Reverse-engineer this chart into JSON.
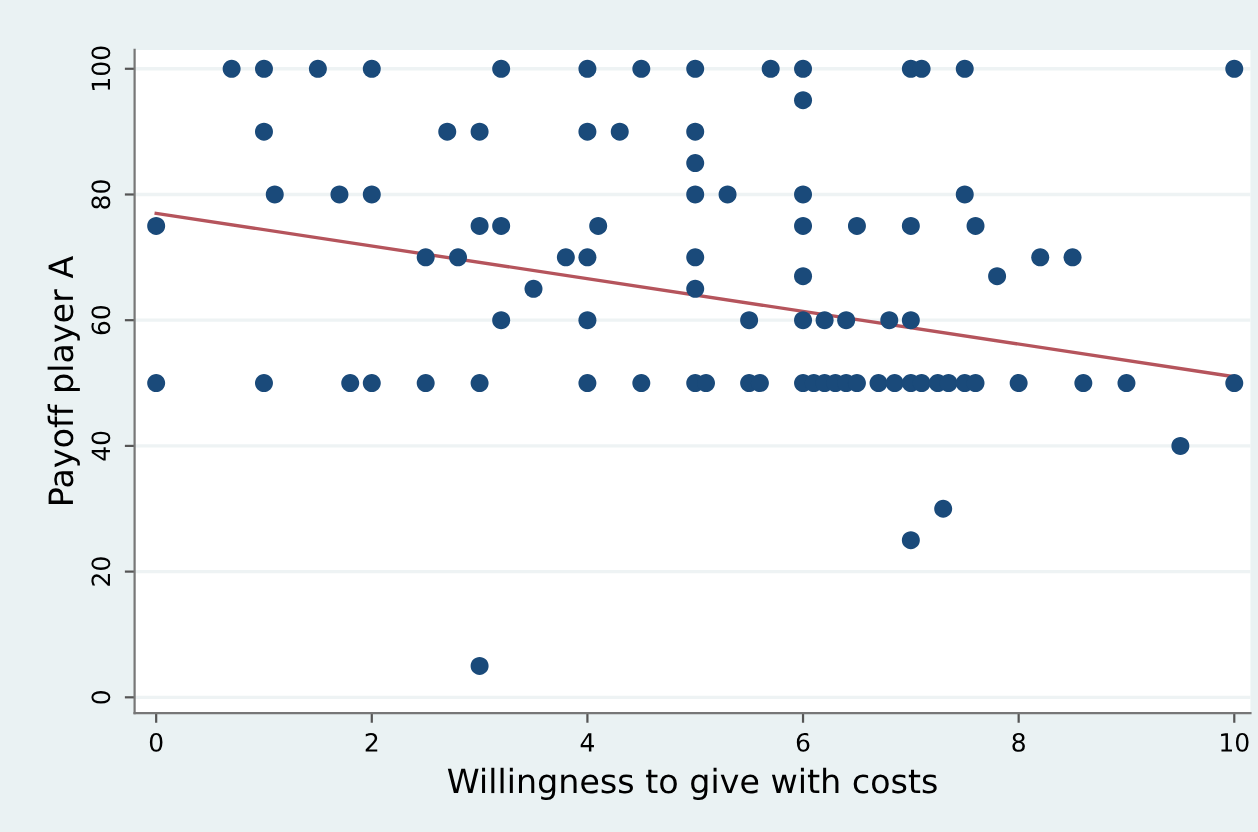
{
  "chart_data": {
    "type": "scatter",
    "xlabel": "Willingness to give with costs",
    "ylabel": "Payoff player A",
    "xlim": [
      -0.2,
      10.15
    ],
    "ylim": [
      -2.5,
      103
    ],
    "xticks": [
      0,
      2,
      4,
      6,
      8,
      10
    ],
    "yticks": [
      0,
      20,
      40,
      60,
      80,
      100
    ],
    "grid": "y",
    "series": [
      {
        "marker": "circle",
        "color": "#1a4a7a",
        "x": [
          0.7,
          1.0,
          1.5,
          2.0,
          3.2,
          4.0,
          4.5,
          5.0,
          5.7,
          6.0,
          7.0,
          7.1,
          7.5,
          10,
          6.0,
          1.0,
          2.7,
          3.0,
          4.0,
          4.3,
          5.0,
          5.0,
          1.1,
          1.7,
          2.0,
          5.0,
          5.3,
          6.0,
          7.5,
          0,
          3.0,
          3.2,
          4.1,
          6.0,
          6.5,
          7.0,
          7.6,
          2.5,
          2.8,
          3.8,
          4.0,
          5.0,
          8.2,
          8.5,
          6.0,
          7.8,
          3.5,
          5.0,
          3.2,
          4.0,
          5.5,
          6.0,
          6.2,
          6.4,
          6.8,
          7.0,
          0,
          1.0,
          1.8,
          2.0,
          2.5,
          3.0,
          4.0,
          4.5,
          5.0,
          5.1,
          5.5,
          5.6,
          6.0,
          6.1,
          6.2,
          6.3,
          6.4,
          6.5,
          6.7,
          6.85,
          7.0,
          7.1,
          7.25,
          7.35,
          7.5,
          7.6,
          8.0,
          8.6,
          9.0,
          10,
          9.5,
          7.3,
          7.0,
          3.0
        ],
        "values": [
          100,
          100,
          100,
          100,
          100,
          100,
          100,
          100,
          100,
          100,
          100,
          100,
          100,
          100,
          95,
          90,
          90,
          90,
          90,
          90,
          90,
          85,
          80,
          80,
          80,
          80,
          80,
          80,
          80,
          75,
          75,
          75,
          75,
          75,
          75,
          75,
          75,
          70,
          70,
          70,
          70,
          70,
          70,
          70,
          67,
          67,
          65,
          65,
          60,
          60,
          60,
          60,
          60,
          60,
          60,
          60,
          50,
          50,
          50,
          50,
          50,
          50,
          50,
          50,
          50,
          50,
          50,
          50,
          50,
          50,
          50,
          50,
          50,
          50,
          50,
          50,
          50,
          50,
          50,
          50,
          50,
          50,
          50,
          50,
          50,
          50,
          40,
          30,
          25,
          5
        ]
      },
      {
        "type": "line",
        "color": "#b5545c",
        "x": [
          0,
          10
        ],
        "values": [
          77,
          51
        ]
      }
    ]
  }
}
